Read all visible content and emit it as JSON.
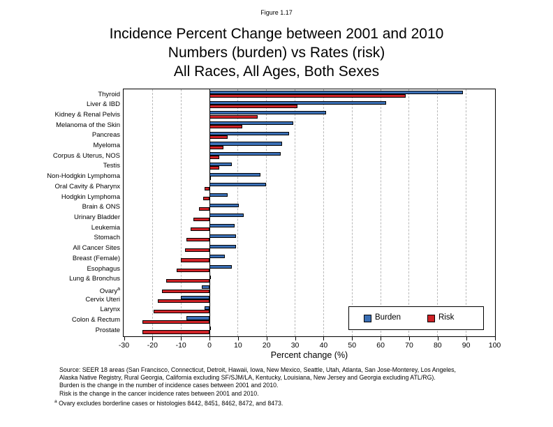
{
  "figure_label": "Figure 1.17",
  "title_lines": [
    "Incidence Percent Change between 2001 and 2010",
    "Numbers (burden) vs Rates (risk)",
    "All Races, All Ages, Both Sexes"
  ],
  "chart_data": {
    "type": "bar",
    "orientation": "horizontal",
    "title": "Incidence Percent Change between 2001 and 2010, Numbers (burden) vs Rates (risk), All Races, All Ages, Both Sexes",
    "xlabel": "Percent change (%)",
    "xlim": [
      -30,
      100
    ],
    "xticks": [
      -30,
      -20,
      -10,
      0,
      10,
      20,
      30,
      40,
      50,
      60,
      70,
      80,
      90,
      100
    ],
    "grid": "vertical-dashed",
    "gridline_color": "#b9b9b9",
    "legend_position": "inside-bottom-right",
    "categories": [
      "Thyroid",
      "Liver & IBD",
      "Kidney & Renal Pelvis",
      "Melanoma of the Skin",
      "Pancreas",
      "Myeloma",
      "Corpus & Uterus, NOS",
      "Testis",
      "Non-Hodgkin Lymphoma",
      "Oral Cavity & Pharynx",
      "Hodgkin Lymphoma",
      "Brain & ONS",
      "Urinary Bladder",
      "Leukemia",
      "Stomach",
      "All Cancer Sites",
      "Breast (Female)",
      "Esophagus",
      "Lung & Bronchus",
      "Ovary^a",
      "Cervix Uteri",
      "Larynx",
      "Colon & Rectum",
      "Prostate"
    ],
    "series": [
      {
        "name": "Burden",
        "color": "#3A6EB4",
        "values": [
          89,
          62,
          41,
          29.5,
          28,
          25.5,
          25,
          8,
          18,
          20,
          6.5,
          10.5,
          12,
          9,
          9.5,
          9.5,
          5.5,
          8,
          0.5,
          -2.5,
          -10,
          -1.5,
          -8,
          0
        ]
      },
      {
        "name": "Risk",
        "color": "#CE2227",
        "values": [
          69,
          31,
          17,
          11.5,
          6.5,
          5,
          3.5,
          3.5,
          0.5,
          -1.5,
          -2,
          -3.5,
          -5.5,
          -6.5,
          -8,
          -8.5,
          -10,
          -11.5,
          -15,
          -16.5,
          -18,
          -19.5,
          -23.5,
          -23.5
        ]
      }
    ]
  },
  "source_notes": {
    "lines": [
      "Source: SEER 18 areas (San Francisco, Connecticut, Detroit, Hawaii, Iowa, New Mexico, Seattle, Utah, Atlanta, San Jose-Monterey, Los Angeles,",
      "Alaska Native Registry, Rural Georgia, California excluding SF/SJM/LA, Kentucky, Louisiana, New Jersey and Georgia excluding ATL/RG).",
      "Burden is the change in the number of incidence cases between 2001 and 2010.",
      "Risk is the change in the cancer incidence rates between 2001 and 2010."
    ],
    "footnote": {
      "marker": "a",
      "text": "Ovary excludes borderline cases or histologies 8442, 8451, 8462, 8472, and 8473."
    }
  }
}
